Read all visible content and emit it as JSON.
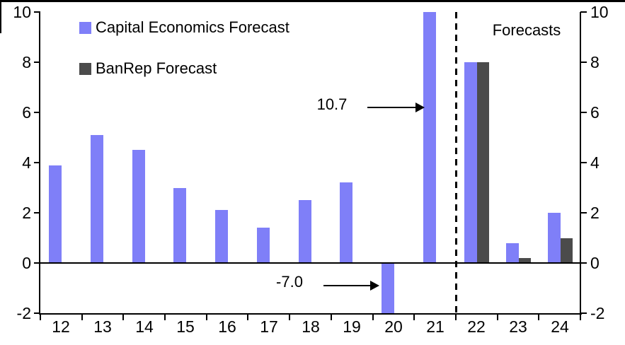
{
  "chart_data": {
    "type": "bar",
    "title": "",
    "categories": [
      "12",
      "13",
      "14",
      "15",
      "16",
      "17",
      "18",
      "19",
      "20",
      "21",
      "22",
      "23",
      "24"
    ],
    "series": [
      {
        "name": "Capital Economics Forecast",
        "color": "#7f7ff8",
        "values": [
          3.9,
          5.1,
          4.5,
          3.0,
          2.1,
          1.4,
          2.5,
          3.2,
          -7.0,
          10.7,
          8.0,
          0.8,
          2.0
        ]
      },
      {
        "name": "BanRep Forecast",
        "color": "#4b4b4b",
        "values": [
          null,
          null,
          null,
          null,
          null,
          null,
          null,
          null,
          null,
          null,
          8.0,
          0.2,
          1.0
        ]
      }
    ],
    "ylim": [
      -2,
      10
    ],
    "yticks": [
      10,
      8,
      6,
      4,
      2,
      0,
      -2
    ],
    "grid": false,
    "legend_position": "top-left",
    "forecast_divider_after": "21",
    "forecast_label": "Forecasts",
    "annotations": [
      {
        "text": "10.7",
        "target_category": "21",
        "value": 10.7
      },
      {
        "text": "-7.0",
        "target_category": "20",
        "value": -7.0
      }
    ],
    "axis_color": "#000000",
    "values_clipped_to_axis": [
      "20",
      "21"
    ]
  }
}
